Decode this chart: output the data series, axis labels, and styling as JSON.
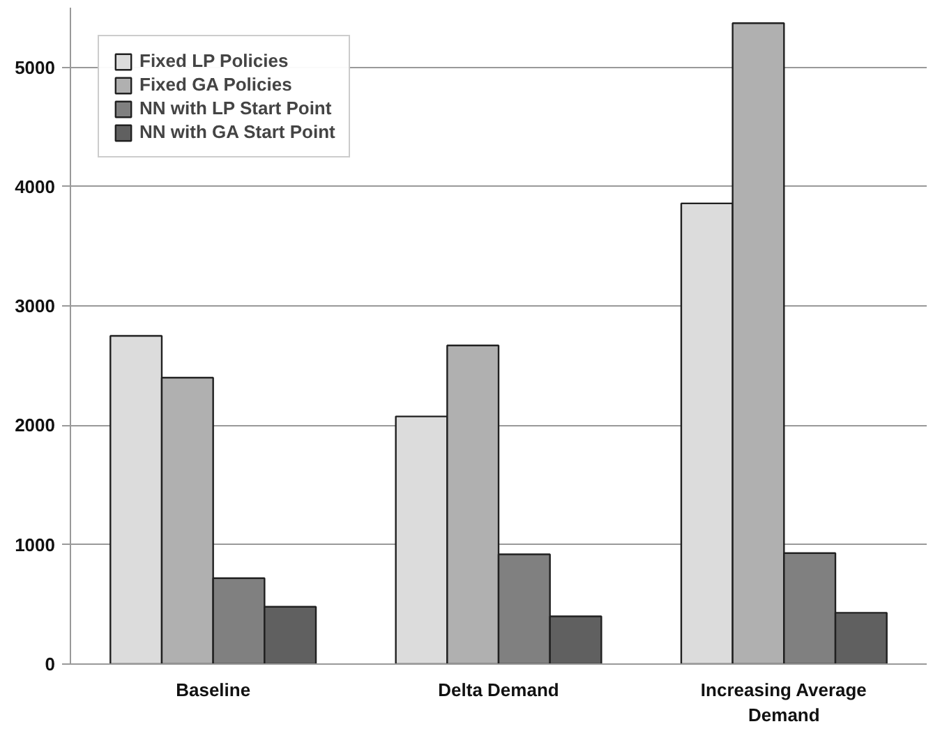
{
  "chart_data": {
    "type": "bar",
    "categories": [
      "Baseline",
      "Delta Demand",
      "Increasing Average Demand"
    ],
    "series": [
      {
        "name": "Fixed LP Policies",
        "color": "#dcdcdc",
        "values": [
          2750,
          2075,
          3860
        ]
      },
      {
        "name": "Fixed GA Policies",
        "color": "#b0b0b0",
        "values": [
          2400,
          2670,
          5370
        ]
      },
      {
        "name": "NN with LP Start Point",
        "color": "#808080",
        "values": [
          720,
          920,
          930
        ]
      },
      {
        "name": "NN with GA Start Point",
        "color": "#606060",
        "values": [
          480,
          400,
          430
        ]
      }
    ],
    "ylim": [
      0,
      5500
    ],
    "yticks": [
      0,
      1000,
      2000,
      3000,
      4000,
      5000
    ],
    "grid": "y",
    "legend": "top left"
  }
}
